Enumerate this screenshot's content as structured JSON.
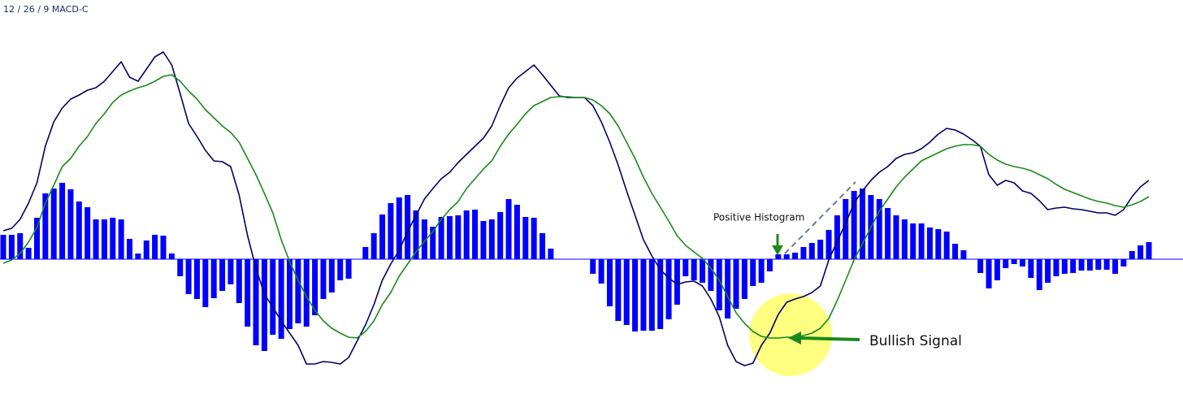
{
  "chart_data": {
    "type": "combo",
    "title": "12 / 26 / 9 MACD-C",
    "annotations": [
      "Positive Histogram",
      "Bullish Signal"
    ],
    "categories": [
      null,
      null,
      null,
      null,
      null,
      null,
      null,
      null,
      null,
      null,
      null,
      null,
      null,
      null,
      null,
      null,
      null,
      null,
      null,
      null,
      null,
      null,
      null,
      null,
      null,
      null,
      null,
      null,
      null,
      null,
      null,
      null,
      null,
      null,
      null,
      null,
      null,
      null,
      null,
      null,
      null,
      null,
      null,
      null,
      null,
      null,
      null,
      null,
      null,
      null,
      null,
      null,
      null,
      null,
      null,
      null,
      null,
      null,
      null,
      null,
      null,
      null,
      null,
      null,
      null,
      null,
      null,
      null,
      null,
      null,
      null,
      null,
      null,
      null,
      null,
      null,
      null,
      null,
      null,
      null,
      null,
      null,
      null,
      null,
      null,
      null,
      null,
      null,
      null,
      null,
      null,
      null,
      null,
      null,
      null,
      null,
      null,
      null,
      null,
      null,
      null,
      null,
      null,
      null,
      null,
      null,
      null,
      null,
      null,
      null,
      null,
      null,
      null,
      null,
      null,
      null,
      null,
      null,
      null,
      null,
      null,
      null,
      null,
      null,
      null,
      null,
      null,
      null,
      null,
      null,
      null,
      null,
      null,
      null,
      null,
      null,
      null
    ],
    "ylim": [
      -17.7,
      31.9
    ],
    "series": [
      {
        "type": "bar",
        "color": "#0000ff",
        "values": [
          3.0,
          3.0,
          3.2,
          1.4,
          5.1,
          8.1,
          8.7,
          9.4,
          8.6,
          7.1,
          6.4,
          4.9,
          4.9,
          5.1,
          4.9,
          2.5,
          0.7,
          2.3,
          3.0,
          2.9,
          0.7,
          -2.1,
          -4.3,
          -4.9,
          -5.9,
          -4.8,
          -3.9,
          -3.1,
          -5.4,
          -8.3,
          -10.6,
          -11.3,
          -9.3,
          -9.8,
          -8.6,
          -7.9,
          -8.3,
          -6.9,
          -4.9,
          -4.1,
          -2.6,
          -2.4,
          0,
          1.5,
          3.2,
          5.5,
          6.9,
          7.6,
          7.9,
          6.0,
          4.9,
          4.0,
          5.2,
          5.3,
          5.4,
          6.0,
          6.1,
          4.7,
          4.9,
          5.8,
          7.4,
          6.7,
          5.2,
          5.1,
          3.2,
          1.3,
          0,
          0,
          0,
          0,
          -1.8,
          -3.0,
          -5.8,
          -7.6,
          -8.1,
          -8.9,
          -8.8,
          -8.8,
          -8.6,
          -7.4,
          -5.6,
          -2.1,
          -2.6,
          -2.9,
          -3.9,
          -6.3,
          -7.3,
          -6.1,
          -4.9,
          -3.3,
          -2.9,
          -1.5,
          0.6,
          0.6,
          0.8,
          1.5,
          2.0,
          2.4,
          3.6,
          5.4,
          7.4,
          8.4,
          8.7,
          7.9,
          7.4,
          6.3,
          5.4,
          4.9,
          4.4,
          4.4,
          3.9,
          3.7,
          3.4,
          1.9,
          1.1,
          0,
          -1.7,
          -3.6,
          -2.6,
          -1.1,
          -0.6,
          -0.9,
          -2.3,
          -3.8,
          -2.9,
          -2.1,
          -1.8,
          -1.7,
          -1.4,
          -1.4,
          -1.3,
          -1.3,
          -1.8,
          -0.9,
          1.0,
          1.7,
          2.1
        ]
      },
      {
        "type": "line",
        "color": "#000066",
        "values": [
          3.5,
          3.8,
          4.9,
          6.9,
          9.4,
          13.9,
          16.9,
          18.6,
          19.7,
          20.2,
          20.8,
          21.1,
          21.9,
          23.1,
          24.3,
          22.4,
          21.9,
          23.4,
          24.9,
          25.5,
          23.9,
          20.4,
          16.7,
          15.1,
          13.4,
          12.1,
          12.0,
          11.4,
          7.9,
          2.9,
          -1.1,
          -4.3,
          -5.9,
          -7.6,
          -9.1,
          -10.6,
          -12.9,
          -12.9,
          -12.6,
          -12.7,
          -12.9,
          -12.1,
          -10.1,
          -8.1,
          -5.6,
          -2.6,
          -0.6,
          1.1,
          3.4,
          5.4,
          7.4,
          8.7,
          9.9,
          10.7,
          11.9,
          12.9,
          13.9,
          14.9,
          16.4,
          18.9,
          21.1,
          22.3,
          23.1,
          23.9,
          22.7,
          21.4,
          20.1,
          19.9,
          19.9,
          19.9,
          18.9,
          16.9,
          14.4,
          11.6,
          8.4,
          5.4,
          2.4,
          0.4,
          -1.3,
          -2.3,
          -3.1,
          -2.8,
          -2.7,
          -3.3,
          -4.9,
          -7.1,
          -10.6,
          -12.6,
          -13.1,
          -12.8,
          -10.6,
          -9.1,
          -6.8,
          -5.3,
          -4.9,
          -4.6,
          -4.1,
          -3.3,
          -0.1,
          2.2,
          4.4,
          6.9,
          8.4,
          9.7,
          10.7,
          11.4,
          12.4,
          12.9,
          13.1,
          13.6,
          14.4,
          15.4,
          16.1,
          15.9,
          15.4,
          14.7,
          13.9,
          10.4,
          9.1,
          9.7,
          9.4,
          8.4,
          8.1,
          7.2,
          6.1,
          6.3,
          6.4,
          6.2,
          6.1,
          5.9,
          5.7,
          5.7,
          5.4,
          6.1,
          7.7,
          8.9,
          9.7
        ]
      },
      {
        "type": "line",
        "color": "#1a8a1a",
        "values": [
          -0.5,
          -0.1,
          0.7,
          2.1,
          3.9,
          6.9,
          9.1,
          11.4,
          12.4,
          13.9,
          15.1,
          16.7,
          17.9,
          19.3,
          20.2,
          20.7,
          21.1,
          21.4,
          21.9,
          22.5,
          22.7,
          21.9,
          20.7,
          19.7,
          18.4,
          17.4,
          16.4,
          15.6,
          14.4,
          12.4,
          10.4,
          8.1,
          5.7,
          2.4,
          -0.3,
          -2.6,
          -4.6,
          -6.3,
          -7.6,
          -8.5,
          -9.1,
          -9.6,
          -9.7,
          -8.9,
          -7.6,
          -5.6,
          -4.1,
          -2.1,
          -0.6,
          0.9,
          2.2,
          3.4,
          4.9,
          6.1,
          7.1,
          8.7,
          9.9,
          11.1,
          12.1,
          13.9,
          15.4,
          16.6,
          17.9,
          18.9,
          19.4,
          19.9,
          20.0,
          20.0,
          19.9,
          19.9,
          19.6,
          18.9,
          17.9,
          16.4,
          14.4,
          12.4,
          10.1,
          8.1,
          6.4,
          4.7,
          2.9,
          1.7,
          0.9,
          0.1,
          -1.1,
          -2.6,
          -4.6,
          -6.6,
          -7.9,
          -8.9,
          -9.5,
          -9.7,
          -9.7,
          -9.6,
          -9.6,
          -9.4,
          -9.1,
          -8.5,
          -7.3,
          -5.1,
          -2.6,
          -0.1,
          1.9,
          3.9,
          5.9,
          7.4,
          8.9,
          10.1,
          11.1,
          12.1,
          12.6,
          13.1,
          13.6,
          13.9,
          14.1,
          14.1,
          13.9,
          12.9,
          12.2,
          11.7,
          11.4,
          11.2,
          10.9,
          10.4,
          9.9,
          9.2,
          8.6,
          8.2,
          7.8,
          7.4,
          7.1,
          6.9,
          6.6,
          6.4,
          6.7,
          7.1,
          7.7
        ]
      }
    ]
  }
}
